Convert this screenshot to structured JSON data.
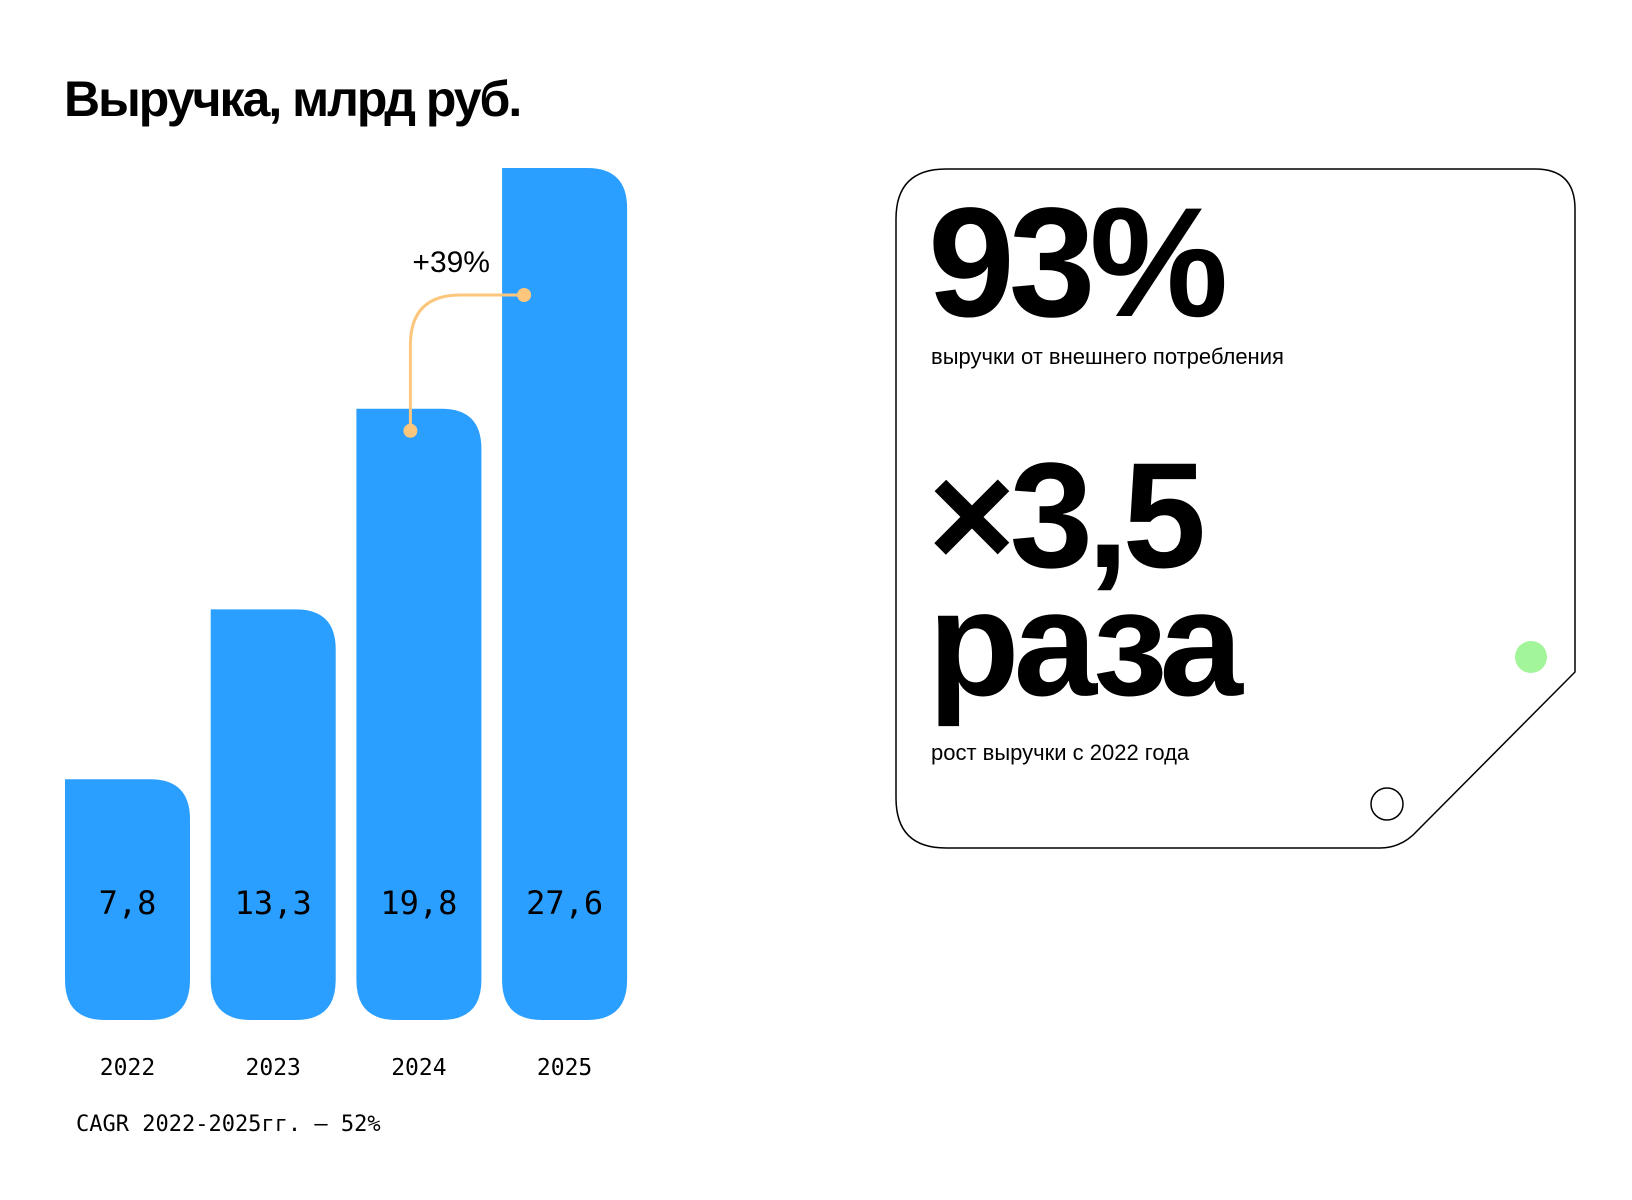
{
  "title": "Выручка, млрд руб.",
  "chart_data": {
    "type": "bar",
    "title": "Выручка, млрд руб.",
    "categories": [
      "2022",
      "2023",
      "2024",
      "2025"
    ],
    "values": [
      7.8,
      13.3,
      19.8,
      27.6
    ],
    "value_labels": [
      "7,8",
      "13,3",
      "19,8",
      "27,6"
    ],
    "ylim": [
      0,
      27.6
    ],
    "grid": false,
    "annotation": {
      "text": "+39%",
      "from": "2024",
      "to": "2025"
    },
    "footnote": "CAGR 2022-2025гг. — 52%"
  },
  "card": {
    "stat1_value": "93%",
    "stat1_caption": "выручки от внешнего потребления",
    "stat2_value": "×3,5",
    "stat2_unit": "раза",
    "stat2_caption": "рост выручки с 2022 года"
  },
  "colors": {
    "bar": "#2b9fff",
    "connector": "#fcc77c",
    "dot": "#a3f59a"
  }
}
